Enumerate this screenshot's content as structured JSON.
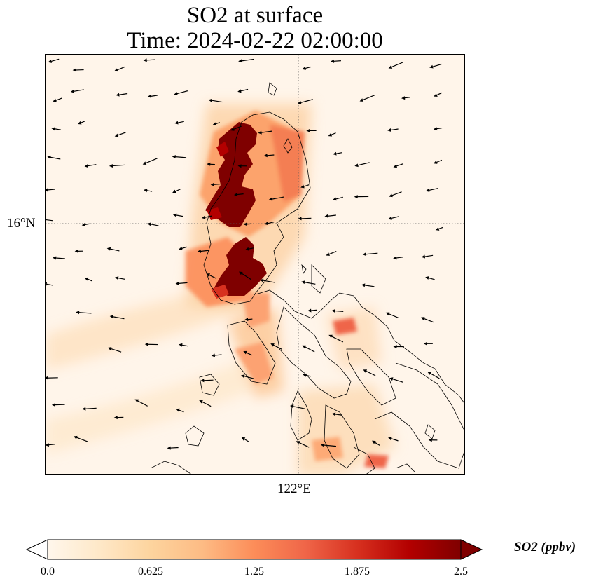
{
  "title": {
    "line1": "SO2 at surface",
    "line2": "Time: 2024-02-22 02:00:00"
  },
  "axes": {
    "lat_tick": "16°N",
    "lon_tick": "122°E",
    "gridline_style": "dotted"
  },
  "colorbar": {
    "label": "SO2 (ppbv)",
    "ticks": [
      "0.0",
      "0.625",
      "1.25",
      "1.875",
      "2.5"
    ],
    "min": 0.0,
    "max": 2.5,
    "colormap": "OrRd",
    "extend": "both",
    "colors": [
      "#fff7ec",
      "#fee8c8",
      "#fdd49e",
      "#fdbb84",
      "#fc8d59",
      "#ef6548",
      "#d7301f",
      "#b30000",
      "#7f0000"
    ]
  },
  "map": {
    "background_color": "#fff5ea",
    "coastline_color": "#000000",
    "wind_vectors": "black arrows"
  }
}
